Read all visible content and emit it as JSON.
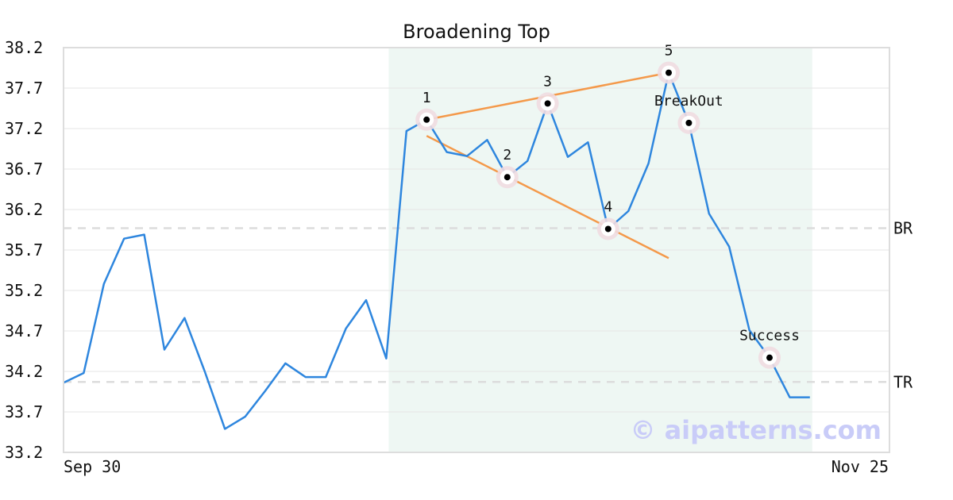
{
  "chart_data": {
    "type": "line",
    "title": "Broadening Top",
    "xlabel": "",
    "ylabel": "",
    "ylim": [
      33.2,
      38.2
    ],
    "yticks": [
      "38.2",
      "37.7",
      "37.2",
      "36.7",
      "36.2",
      "35.7",
      "35.2",
      "34.7",
      "34.2",
      "33.7",
      "33.2"
    ],
    "xtick_labels": {
      "first": "Sep 30",
      "last": "Nov 25"
    },
    "grid": true,
    "series": [
      {
        "name": "",
        "color": "#2e86de",
        "values": [
          34.06,
          34.18,
          35.28,
          35.84,
          35.89,
          34.47,
          34.86,
          34.2,
          33.49,
          33.64,
          33.96,
          34.3,
          34.13,
          34.13,
          34.73,
          35.08,
          34.36,
          37.17,
          37.31,
          36.91,
          36.86,
          37.06,
          36.6,
          36.8,
          37.51,
          36.85,
          37.03,
          35.96,
          36.18,
          36.77,
          37.89,
          37.27,
          36.15,
          35.74,
          34.71,
          34.37,
          33.88,
          33.88
        ]
      }
    ],
    "highlight_range": {
      "start_index": 16,
      "end_index": 37,
      "color": "#eef7f3"
    },
    "levels": [
      {
        "label": "BR",
        "value": 35.97
      },
      {
        "label": "TR",
        "value": 34.07
      }
    ],
    "trendlines": [
      {
        "color": "#f4994a",
        "from": {
          "index": 18,
          "value": 37.31
        },
        "to": {
          "index": 30,
          "value": 37.89
        }
      },
      {
        "color": "#f4994a",
        "from": {
          "index": 18,
          "value": 37.11
        },
        "to": {
          "index": 30,
          "value": 35.6
        }
      }
    ],
    "annotations": [
      {
        "label": "1",
        "index": 18,
        "value": 37.31,
        "label_pos": "above"
      },
      {
        "label": "2",
        "index": 22,
        "value": 36.6,
        "label_pos": "above"
      },
      {
        "label": "3",
        "index": 24,
        "value": 37.51,
        "label_pos": "above"
      },
      {
        "label": "4",
        "index": 27,
        "value": 35.96,
        "label_pos": "above"
      },
      {
        "label": "5",
        "index": 30,
        "value": 37.89,
        "label_pos": "above"
      },
      {
        "label": "BreakOut",
        "index": 31,
        "value": 37.27,
        "label_pos": "above"
      },
      {
        "label": "Success",
        "index": 35,
        "value": 34.37,
        "label_pos": "above"
      }
    ],
    "watermark": "© aipatterns.com"
  }
}
